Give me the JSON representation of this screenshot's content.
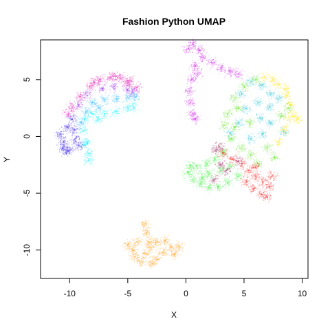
{
  "chart_data": {
    "type": "scatter",
    "title": "Fashion Python UMAP",
    "xlabel": "X",
    "ylabel": "Y",
    "xlim": [
      -12.5,
      10.5
    ],
    "ylim": [
      -12.5,
      8.5
    ],
    "xticks": [
      -10,
      -5,
      0,
      5,
      10
    ],
    "xtick_labels": [
      "-10",
      "-5",
      "0",
      "5",
      "10"
    ],
    "yticks": [
      -10,
      -5,
      0,
      5
    ],
    "ytick_labels": [
      "-10",
      "-5",
      "0",
      "5"
    ],
    "grid": false,
    "legend": "none",
    "series": [
      {
        "color": "#e619b3",
        "points": [
          [
            -6.5,
            5.2
          ],
          [
            -5.6,
            5.1
          ],
          [
            -4.8,
            4.9
          ],
          [
            -4.2,
            4.3
          ],
          [
            -7.4,
            5.0
          ],
          [
            -8.3,
            4.4
          ],
          [
            -9.1,
            3.5
          ],
          [
            -9.8,
            2.6
          ],
          [
            -10.1,
            2.0
          ],
          [
            -6.0,
            5.3
          ],
          [
            -5.0,
            4.7
          ],
          [
            -7.9,
            4.8
          ]
        ]
      },
      {
        "color": "#9b33e8",
        "points": [
          [
            -7.2,
            4.2
          ],
          [
            -6.2,
            4.4
          ],
          [
            -5.0,
            4.1
          ],
          [
            -8.5,
            3.6
          ],
          [
            -9.2,
            2.8
          ],
          [
            -4.6,
            3.9
          ]
        ]
      },
      {
        "color": "#2eb8ff",
        "points": [
          [
            -8.0,
            3.0
          ],
          [
            -7.0,
            3.2
          ],
          [
            -6.0,
            3.3
          ],
          [
            -5.0,
            3.4
          ],
          [
            -4.3,
            3.5
          ],
          [
            -8.6,
            2.2
          ],
          [
            -9.0,
            1.2
          ],
          [
            -7.5,
            2.5
          ]
        ]
      },
      {
        "color": "#1ff2ff",
        "points": [
          [
            -8.7,
            1.5
          ],
          [
            -8.0,
            2.0
          ],
          [
            -7.0,
            2.0
          ],
          [
            -6.0,
            2.2
          ],
          [
            -5.0,
            2.5
          ],
          [
            -4.5,
            2.6
          ],
          [
            -8.8,
            0.5
          ],
          [
            -8.5,
            -0.5
          ],
          [
            -8.3,
            -1.5
          ],
          [
            -8.4,
            -2.1
          ],
          [
            -8.7,
            -0.7
          ],
          [
            -7.5,
            1.5
          ]
        ]
      },
      {
        "color": "#3b1fe6",
        "points": [
          [
            -10.5,
            -0.5
          ],
          [
            -10.0,
            -1.2
          ],
          [
            -10.2,
            0.8
          ],
          [
            -9.5,
            -0.2
          ],
          [
            -10.6,
            -1.0
          ],
          [
            -9.8,
            1.5
          ],
          [
            -9.2,
            -0.8
          ],
          [
            -10.8,
            0.2
          ],
          [
            -10.3,
            -1.4
          ],
          [
            -9.6,
            0.6
          ]
        ]
      },
      {
        "color": "#cc1fe6",
        "points": [
          [
            0.2,
            7.7
          ],
          [
            0.6,
            8.1
          ],
          [
            1.2,
            7.6
          ],
          [
            1.5,
            7.0
          ],
          [
            2.2,
            6.5
          ],
          [
            3.0,
            6.0
          ],
          [
            3.8,
            5.7
          ],
          [
            4.5,
            5.5
          ],
          [
            0.8,
            6.2
          ],
          [
            0.5,
            5.0
          ],
          [
            0.3,
            4.0
          ],
          [
            0.4,
            3.0
          ],
          [
            0.6,
            2.0
          ],
          [
            0.8,
            1.5
          ],
          [
            1.0,
            5.5
          ]
        ]
      },
      {
        "color": "#36c7d9",
        "points": [
          [
            5.6,
            4.8
          ],
          [
            6.5,
            4.5
          ],
          [
            7.3,
            3.8
          ],
          [
            8.0,
            3.3
          ],
          [
            4.8,
            3.8
          ],
          [
            6.2,
            3.0
          ],
          [
            7.2,
            2.6
          ],
          [
            5.2,
            2.4
          ],
          [
            6.4,
            1.6
          ],
          [
            7.3,
            1.2
          ],
          [
            4.6,
            1.2
          ],
          [
            6.6,
            0.2
          ],
          [
            5.6,
            -0.2
          ],
          [
            8.4,
            0.4
          ],
          [
            3.8,
            0.3
          ]
        ]
      },
      {
        "color": "#ffe619",
        "points": [
          [
            6.8,
            5.2
          ],
          [
            7.9,
            4.6
          ],
          [
            8.7,
            3.6
          ],
          [
            9.0,
            2.8
          ],
          [
            8.9,
            1.6
          ],
          [
            8.5,
            0.6
          ],
          [
            8.0,
            -0.5
          ],
          [
            8.6,
            4.2
          ],
          [
            9.3,
            1.8
          ],
          [
            7.5,
            5.0
          ],
          [
            9.6,
            1.5
          ]
        ]
      },
      {
        "color": "#66e626",
        "points": [
          [
            5.0,
            4.4
          ],
          [
            4.2,
            3.4
          ],
          [
            3.6,
            2.0
          ],
          [
            3.3,
            1.0
          ],
          [
            3.9,
            -0.2
          ],
          [
            4.8,
            -1.0
          ],
          [
            5.6,
            -1.6
          ],
          [
            6.2,
            -2.4
          ],
          [
            4.5,
            2.5
          ],
          [
            5.5,
            1.2
          ],
          [
            7.0,
            -1.0
          ],
          [
            7.6,
            -1.8
          ],
          [
            8.8,
            2.5
          ],
          [
            8.2,
            1.8
          ],
          [
            6.0,
            5.0
          ],
          [
            4.2,
            0.8
          ]
        ]
      },
      {
        "color": "#3df23d",
        "points": [
          [
            0.2,
            -3.2
          ],
          [
            0.6,
            -3.8
          ],
          [
            1.3,
            -4.2
          ],
          [
            2.0,
            -4.5
          ],
          [
            2.8,
            -4.4
          ],
          [
            1.0,
            -2.8
          ],
          [
            1.8,
            -2.4
          ],
          [
            2.5,
            -2.0
          ],
          [
            3.2,
            -1.4
          ],
          [
            2.0,
            -3.3
          ],
          [
            3.0,
            -3.0
          ],
          [
            3.8,
            -2.6
          ],
          [
            4.5,
            -3.5
          ],
          [
            1.4,
            -3.6
          ],
          [
            0.4,
            -2.6
          ],
          [
            3.6,
            -4.1
          ]
        ]
      },
      {
        "color": "#ff2626",
        "points": [
          [
            3.2,
            -1.5
          ],
          [
            4.0,
            -2.0
          ],
          [
            4.8,
            -2.4
          ],
          [
            5.4,
            -3.0
          ],
          [
            6.0,
            -3.5
          ],
          [
            6.6,
            -4.0
          ],
          [
            7.2,
            -4.4
          ],
          [
            5.8,
            -4.6
          ],
          [
            6.5,
            -5.1
          ],
          [
            7.4,
            -3.5
          ],
          [
            6.0,
            -2.7
          ],
          [
            7.0,
            -5.3
          ],
          [
            5.2,
            -4.0
          ]
        ]
      },
      {
        "color": "#993366",
        "points": [
          [
            2.6,
            -1.2
          ],
          [
            3.0,
            -2.5
          ],
          [
            3.5,
            -3.0
          ],
          [
            2.4,
            -3.8
          ],
          [
            4.5,
            -2.2
          ],
          [
            2.9,
            -0.9
          ]
        ]
      },
      {
        "color": "#ff9e19",
        "points": [
          [
            -3.5,
            -7.7
          ],
          [
            -3.4,
            -8.5
          ],
          [
            -3.2,
            -9.3
          ],
          [
            -4.2,
            -9.3
          ],
          [
            -5.0,
            -9.6
          ],
          [
            -4.5,
            -10.0
          ],
          [
            -3.4,
            -10.3
          ],
          [
            -2.6,
            -10.8
          ],
          [
            -2.0,
            -10.2
          ],
          [
            -1.3,
            -9.8
          ],
          [
            -0.6,
            -9.7
          ],
          [
            -2.5,
            -9.3
          ],
          [
            -1.8,
            -9.2
          ],
          [
            -3.8,
            -11.0
          ],
          [
            -4.4,
            -10.6
          ],
          [
            -2.9,
            -11.2
          ],
          [
            -1.0,
            -10.4
          ],
          [
            -3.0,
            -9.8
          ]
        ]
      }
    ]
  }
}
